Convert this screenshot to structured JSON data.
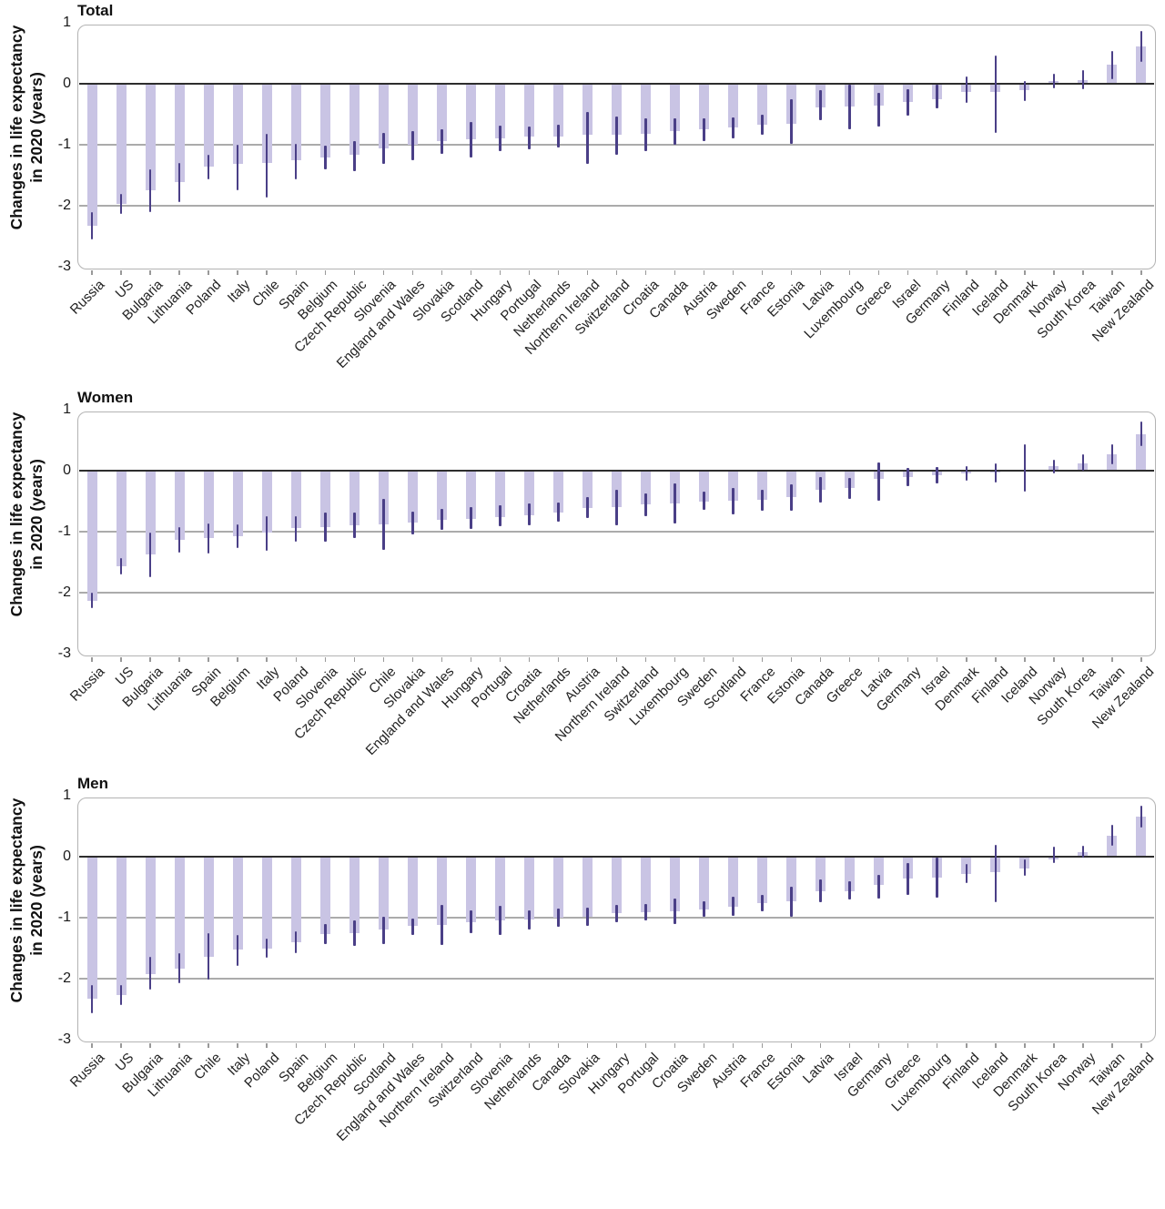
{
  "y_axis": {
    "label_line1": "Changes in life expectancy",
    "label_line2": "in 2020 (years)",
    "ticks": [
      1,
      0,
      -1,
      -2,
      -3
    ]
  },
  "colors": {
    "bar": "#c9c4e4",
    "error_bar": "#4a3f87",
    "zero_line": "#2d2d2d",
    "gridline": "#ababab",
    "box_border": "#b3b3b3",
    "tick": "#999999",
    "text": "#1a1a1a"
  },
  "chart_data": [
    {
      "type": "bar",
      "title": "Total",
      "ylabel": "Changes in life expectancy in 2020 (years)",
      "ylim": [
        -3.05,
        1
      ],
      "gridlines": [
        -1,
        -2
      ],
      "legend": "none",
      "error_bars": true,
      "categories": [
        "Russia",
        "US",
        "Bulgaria",
        "Lithuania",
        "Poland",
        "Italy",
        "Chile",
        "Spain",
        "Belgium",
        "Czech Republic",
        "Slovenia",
        "England and Wales",
        "Slovakia",
        "Scotland",
        "Hungary",
        "Portugal",
        "Netherlands",
        "Northern Ireland",
        "Switzerland",
        "Croatia",
        "Canada",
        "Austria",
        "Sweden",
        "France",
        "Estonia",
        "Latvia",
        "Luxembourg",
        "Greece",
        "Israel",
        "Germany",
        "Finland",
        "Iceland",
        "Denmark",
        "Norway",
        "South Korea",
        "Taiwan",
        "New Zealand"
      ],
      "values": [
        -2.33,
        -1.97,
        -1.74,
        -1.61,
        -1.36,
        -1.31,
        -1.3,
        -1.26,
        -1.21,
        -1.16,
        -1.06,
        -1.0,
        -0.94,
        -0.91,
        -0.9,
        -0.87,
        -0.86,
        -0.84,
        -0.83,
        -0.82,
        -0.77,
        -0.75,
        -0.72,
        -0.67,
        -0.65,
        -0.39,
        -0.37,
        -0.36,
        -0.3,
        -0.25,
        -0.14,
        -0.13,
        -0.1,
        0.05,
        0.06,
        0.31,
        0.61
      ],
      "ci_lower": [
        -2.55,
        -2.13,
        -2.11,
        -1.94,
        -1.56,
        -1.74,
        -1.86,
        -1.56,
        -1.41,
        -1.43,
        -1.32,
        -1.25,
        -1.15,
        -1.21,
        -1.1,
        -1.08,
        -1.05,
        -1.31,
        -1.16,
        -1.1,
        -1.0,
        -0.94,
        -0.89,
        -0.84,
        -0.99,
        -0.6,
        -0.75,
        -0.7,
        -0.53,
        -0.4,
        -0.32,
        -0.8,
        -0.29,
        -0.07,
        -0.09,
        0.08,
        0.36
      ],
      "ci_upper": [
        -2.1,
        -1.81,
        -1.4,
        -1.3,
        -1.17,
        -1.0,
        -0.82,
        -0.99,
        -1.02,
        -0.94,
        -0.8,
        -0.78,
        -0.74,
        -0.63,
        -0.68,
        -0.7,
        -0.67,
        -0.46,
        -0.54,
        -0.57,
        -0.56,
        -0.56,
        -0.55,
        -0.5,
        -0.25,
        -0.1,
        -0.01,
        -0.15,
        -0.09,
        -0.02,
        0.12,
        0.47,
        0.05,
        0.16,
        0.22,
        0.53,
        0.86
      ]
    },
    {
      "type": "bar",
      "title": "Women",
      "ylabel": "Changes in life expectancy in 2020 (years)",
      "ylim": [
        -3.05,
        1
      ],
      "gridlines": [
        -1,
        -2
      ],
      "legend": "none",
      "error_bars": true,
      "categories": [
        "Russia",
        "US",
        "Bulgaria",
        "Lithuania",
        "Spain",
        "Belgium",
        "Italy",
        "Poland",
        "Slovenia",
        "Czech Republic",
        "Chile",
        "Slovakia",
        "England and Wales",
        "Hungary",
        "Portugal",
        "Croatia",
        "Netherlands",
        "Austria",
        "Northern Ireland",
        "Switzerland",
        "Luxembourg",
        "Sweden",
        "Scotland",
        "France",
        "Estonia",
        "Canada",
        "Greece",
        "Latvia",
        "Germany",
        "Israel",
        "Denmark",
        "Finland",
        "Iceland",
        "Norway",
        "South Korea",
        "Taiwan",
        "New Zealand"
      ],
      "values": [
        -2.13,
        -1.56,
        -1.37,
        -1.13,
        -1.11,
        -1.07,
        -1.02,
        -0.94,
        -0.93,
        -0.9,
        -0.88,
        -0.85,
        -0.81,
        -0.79,
        -0.76,
        -0.73,
        -0.68,
        -0.61,
        -0.6,
        -0.55,
        -0.54,
        -0.5,
        -0.49,
        -0.48,
        -0.44,
        -0.31,
        -0.29,
        -0.13,
        -0.11,
        -0.08,
        -0.05,
        -0.03,
        0.02,
        0.07,
        0.12,
        0.27,
        0.6
      ],
      "ci_lower": [
        -2.26,
        -1.7,
        -1.74,
        -1.35,
        -1.36,
        -1.27,
        -1.32,
        -1.16,
        -1.17,
        -1.11,
        -1.3,
        -1.04,
        -0.97,
        -0.95,
        -0.91,
        -0.89,
        -0.84,
        -0.77,
        -0.89,
        -0.74,
        -0.87,
        -0.64,
        -0.71,
        -0.65,
        -0.65,
        -0.53,
        -0.47,
        -0.5,
        -0.26,
        -0.21,
        -0.16,
        -0.19,
        -0.35,
        -0.04,
        0.0,
        0.11,
        0.41
      ],
      "ci_upper": [
        -2.0,
        -1.43,
        -1.01,
        -0.93,
        -0.86,
        -0.88,
        -0.75,
        -0.74,
        -0.69,
        -0.69,
        -0.46,
        -0.67,
        -0.62,
        -0.6,
        -0.56,
        -0.54,
        -0.52,
        -0.43,
        -0.32,
        -0.37,
        -0.21,
        -0.35,
        -0.28,
        -0.31,
        -0.22,
        -0.11,
        -0.12,
        0.14,
        0.05,
        0.06,
        0.07,
        0.12,
        0.43,
        0.18,
        0.27,
        0.43,
        0.8
      ]
    },
    {
      "type": "bar",
      "title": "Men",
      "ylabel": "Changes in life expectancy in 2020 (years)",
      "ylim": [
        -3.05,
        1
      ],
      "gridlines": [
        -1,
        -2
      ],
      "legend": "none",
      "error_bars": true,
      "categories": [
        "Russia",
        "US",
        "Bulgaria",
        "Lithuania",
        "Chile",
        "Italy",
        "Poland",
        "Spain",
        "Belgium",
        "Czech Republic",
        "Scotland",
        "England and Wales",
        "Northern Ireland",
        "Switzerland",
        "Slovenia",
        "Netherlands",
        "Canada",
        "Slovakia",
        "Hungary",
        "Portugal",
        "Croatia",
        "Sweden",
        "Austria",
        "France",
        "Estonia",
        "Latvia",
        "Israel",
        "Germany",
        "Greece",
        "Luxembourg",
        "Finland",
        "Iceland",
        "Denmark",
        "South Korea",
        "Norway",
        "Taiwan",
        "New Zealand"
      ],
      "values": [
        -2.33,
        -2.27,
        -1.92,
        -1.83,
        -1.64,
        -1.52,
        -1.5,
        -1.4,
        -1.27,
        -1.25,
        -1.2,
        -1.14,
        -1.12,
        -1.07,
        -1.04,
        -1.03,
        -1.0,
        -0.98,
        -0.93,
        -0.91,
        -0.89,
        -0.86,
        -0.82,
        -0.76,
        -0.73,
        -0.57,
        -0.56,
        -0.46,
        -0.36,
        -0.34,
        -0.28,
        -0.26,
        -0.19,
        -0.05,
        0.07,
        0.35,
        0.65
      ],
      "ci_lower": [
        -2.56,
        -2.43,
        -2.18,
        -2.08,
        -2.02,
        -1.79,
        -1.65,
        -1.58,
        -1.44,
        -1.46,
        -1.43,
        -1.28,
        -1.45,
        -1.25,
        -1.28,
        -1.19,
        -1.15,
        -1.14,
        -1.08,
        -1.05,
        -1.11,
        -0.99,
        -0.97,
        -0.89,
        -0.98,
        -0.75,
        -0.7,
        -0.68,
        -0.62,
        -0.67,
        -0.43,
        -0.74,
        -0.31,
        -0.11,
        -0.02,
        0.18,
        0.47
      ],
      "ci_upper": [
        -2.1,
        -2.1,
        -1.64,
        -1.58,
        -1.26,
        -1.28,
        -1.35,
        -1.23,
        -1.11,
        -1.05,
        -0.99,
        -1.01,
        -0.79,
        -0.88,
        -0.81,
        -0.88,
        -0.85,
        -0.83,
        -0.79,
        -0.77,
        -0.68,
        -0.73,
        -0.66,
        -0.63,
        -0.49,
        -0.37,
        -0.41,
        -0.3,
        -0.11,
        -0.01,
        -0.12,
        0.19,
        -0.05,
        0.16,
        0.18,
        0.52,
        0.83
      ]
    }
  ]
}
